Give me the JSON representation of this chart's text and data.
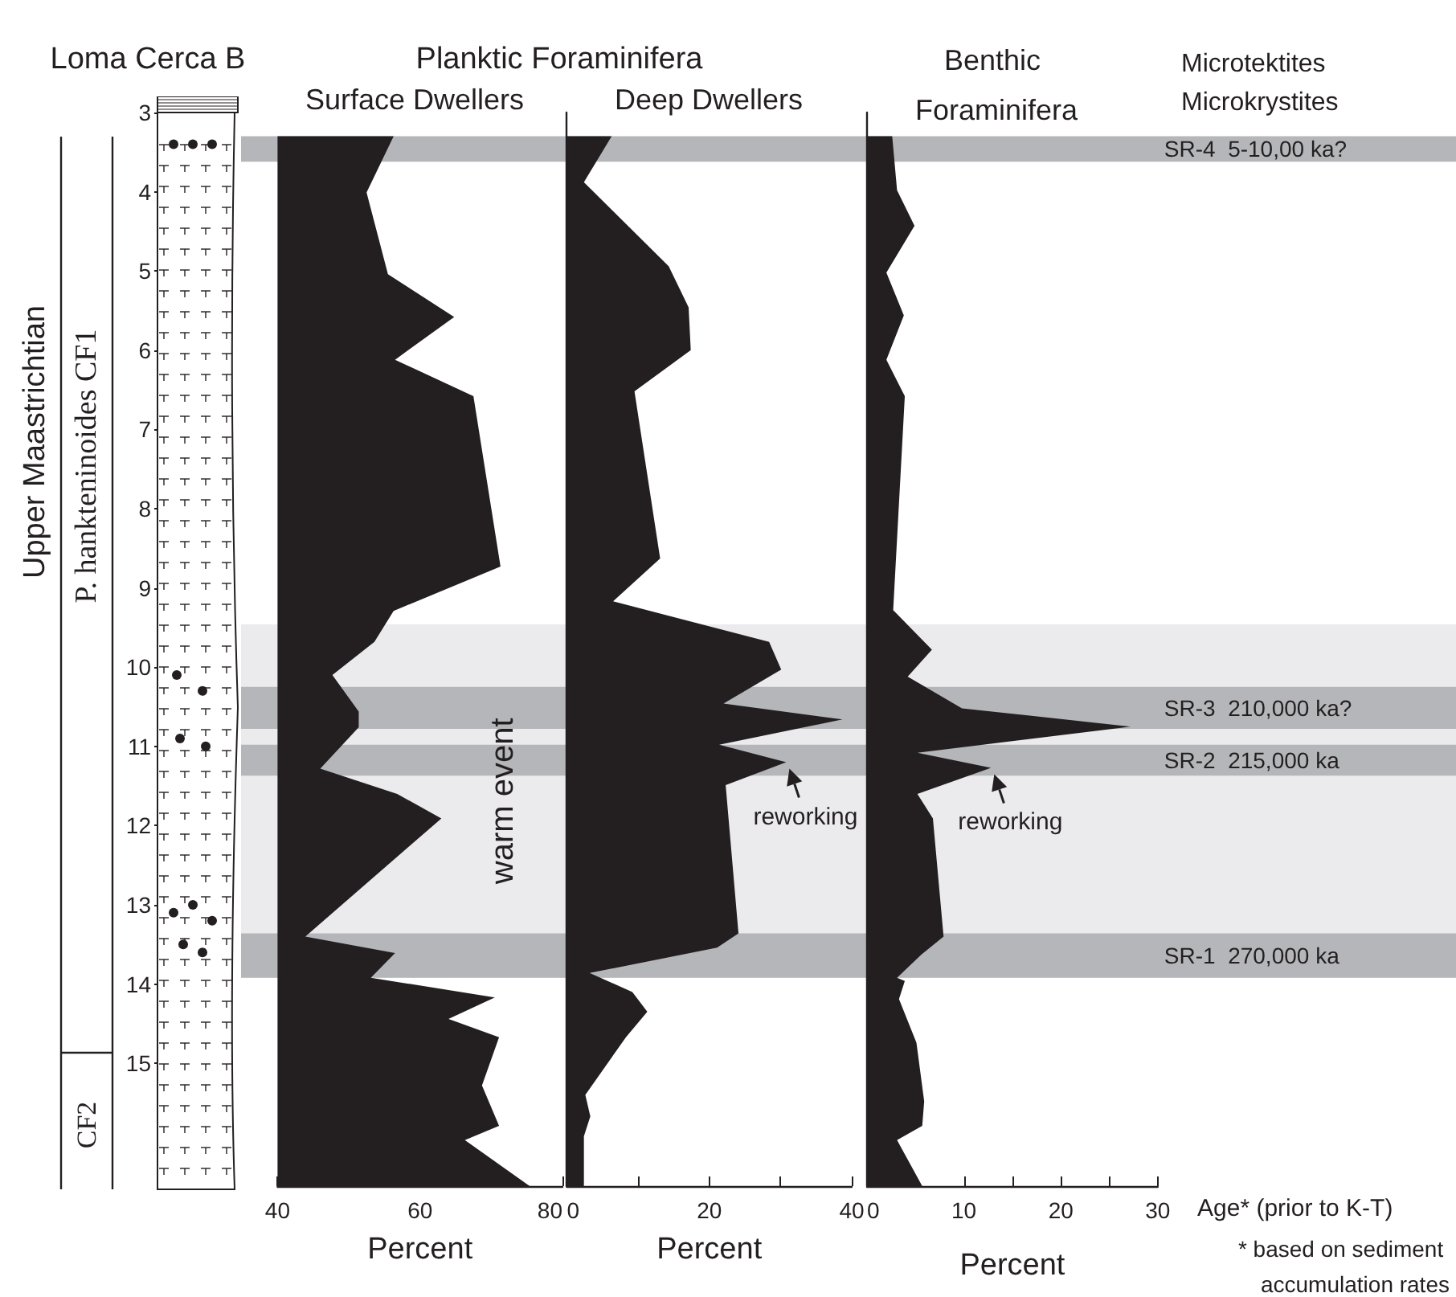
{
  "chart_data": [
    {
      "type": "area",
      "orientation": "horizontal",
      "title": "Surface Dwellers",
      "xlabel": "Percent",
      "color": "#231f20",
      "x": [
        3.3,
        4.01,
        5.04,
        5.58,
        6.12,
        6.58,
        8.73,
        9.29,
        9.68,
        10.1,
        10.56,
        10.76,
        11.28,
        11.6,
        11.91,
        13.4,
        13.61,
        13.92,
        14.17,
        14.44,
        14.67,
        15.28,
        15.79,
        15.97,
        16.55
      ],
      "values": [
        56.3,
        52.5,
        55.5,
        64.8,
        56.5,
        67.5,
        71.3,
        56.3,
        53.6,
        47.7,
        51.4,
        51.4,
        46.0,
        56.8,
        63.0,
        43.9,
        56.5,
        53.1,
        70.5,
        64.0,
        71.1,
        68.7,
        71.1,
        66.3,
        75.4
      ],
      "xlim": [
        40,
        80
      ],
      "xticks": [
        40,
        {
          "value": 50,
          "label": null
        },
        60,
        {
          "value": 70,
          "label": null
        },
        80
      ],
      "ylim": [
        16.55,
        3
      ],
      "yticks": [
        3,
        4,
        5,
        6,
        7,
        8,
        9,
        10,
        11,
        12,
        13,
        14,
        15
      ],
      "bands": [
        {
          "axis": "y",
          "from": 9.46,
          "to": 13.92,
          "color": "#ebebee",
          "label": "warm event"
        },
        {
          "axis": "y",
          "from": 3.3,
          "to": 3.62,
          "color": "#b5b6b9"
        },
        {
          "axis": "y",
          "from": 10.25,
          "to": 10.78,
          "color": "#b5b6b9"
        },
        {
          "axis": "y",
          "from": 10.98,
          "to": 11.37,
          "color": "#b5b6b9"
        },
        {
          "axis": "y",
          "from": 13.36,
          "to": 13.92,
          "color": "#b5b6b9"
        }
      ],
      "annotations": [
        "Loma Cerca B",
        "Planktic Foraminifera",
        "Upper Maastrichtian",
        "P. hankteninoides CF1",
        "CF2"
      ]
    },
    {
      "type": "area",
      "orientation": "horizontal",
      "title": "Deep Dwellers",
      "xlabel": "Percent",
      "color": "#231f20",
      "x": [
        3.3,
        3.88,
        4.94,
        5.46,
        6.0,
        6.52,
        8.63,
        9.17,
        9.68,
        10.03,
        10.46,
        10.66,
        10.98,
        11.2,
        11.49,
        13.36,
        13.54,
        13.86,
        14.1,
        14.35,
        14.67,
        15.4,
        15.67,
        15.92,
        16.55
      ],
      "values": [
        6.3,
        2.4,
        14.3,
        17.1,
        17.4,
        9.5,
        13.1,
        6.5,
        28.4,
        30.1,
        22.0,
        38.7,
        21.4,
        30.8,
        22.3,
        24.1,
        21.1,
        3.2,
        9.2,
        11.3,
        8.3,
        2.6,
        3.3,
        2.4,
        2.4
      ],
      "xlim": [
        0,
        40
      ],
      "xticks": [
        0,
        {
          "value": 10,
          "label": null
        },
        20,
        {
          "value": 30,
          "label": null
        },
        40
      ],
      "ylim": [
        16.55,
        3
      ],
      "tick_labels": "x",
      "bands": [
        {
          "axis": "y",
          "from": 9.46,
          "to": 13.92,
          "color": "#ebebee"
        },
        {
          "axis": "y",
          "from": 3.3,
          "to": 3.62,
          "color": "#b5b6b9"
        },
        {
          "axis": "y",
          "from": 10.25,
          "to": 10.78,
          "color": "#b5b6b9"
        },
        {
          "axis": "y",
          "from": 10.98,
          "to": 11.37,
          "color": "#b5b6b9"
        },
        {
          "axis": "y",
          "from": 13.36,
          "to": 13.92,
          "color": "#b5b6b9"
        }
      ],
      "annotations": [
        {
          "text": "reworking",
          "x": 30.8,
          "y": 11.2
        }
      ]
    },
    {
      "type": "area",
      "orientation": "horizontal",
      "title": "Benthic Foraminifera",
      "xlabel": "Percent",
      "color": "#231f20",
      "x": [
        3.3,
        3.98,
        4.43,
        5.02,
        5.56,
        6.12,
        6.58,
        9.28,
        9.78,
        10.12,
        10.52,
        10.75,
        11.08,
        11.27,
        11.6,
        11.91,
        13.4,
        13.63,
        13.92,
        13.96,
        14.19,
        14.74,
        15.48,
        15.79,
        15.97,
        16.55
      ],
      "values": [
        2.6,
        3.1,
        4.9,
        2.0,
        3.8,
        2.0,
        3.9,
        2.7,
        6.7,
        4.2,
        9.8,
        27.2,
        5.2,
        12.8,
        5.2,
        6.8,
        7.9,
        5.6,
        3.1,
        3.9,
        3.3,
        5.1,
        5.9,
        5.7,
        3.1,
        5.7
      ],
      "xlim": [
        0,
        30
      ],
      "xticks": [
        0,
        {
          "value": 5,
          "label": null
        },
        10,
        {
          "value": 15,
          "label": null
        },
        20,
        {
          "value": 25,
          "label": null
        },
        30
      ],
      "ylim": [
        16.55,
        3
      ],
      "tick_labels": "x",
      "bands": [
        {
          "axis": "y",
          "from": 9.46,
          "to": 13.92,
          "color": "#ebebee"
        },
        {
          "axis": "y",
          "from": 3.3,
          "to": 3.62,
          "color": "#b5b6b9",
          "label": "SR-4  5-10,00 ka?"
        },
        {
          "axis": "y",
          "from": 10.25,
          "to": 10.78,
          "color": "#b5b6b9",
          "label": "SR-3  210,000 ka?"
        },
        {
          "axis": "y",
          "from": 10.98,
          "to": 11.37,
          "color": "#b5b6b9",
          "label": "SR-2  215,000 ka"
        },
        {
          "axis": "y",
          "from": 13.36,
          "to": 13.92,
          "color": "#b5b6b9",
          "label": "SR-1  270,000 ka"
        }
      ],
      "annotations": [
        "Microtektites Microkrystites",
        "Age* (prior to K-T)",
        "* based on sediment accumulation rates",
        {
          "text": "reworking",
          "x": 12.8,
          "y": 11.27
        }
      ]
    }
  ]
}
